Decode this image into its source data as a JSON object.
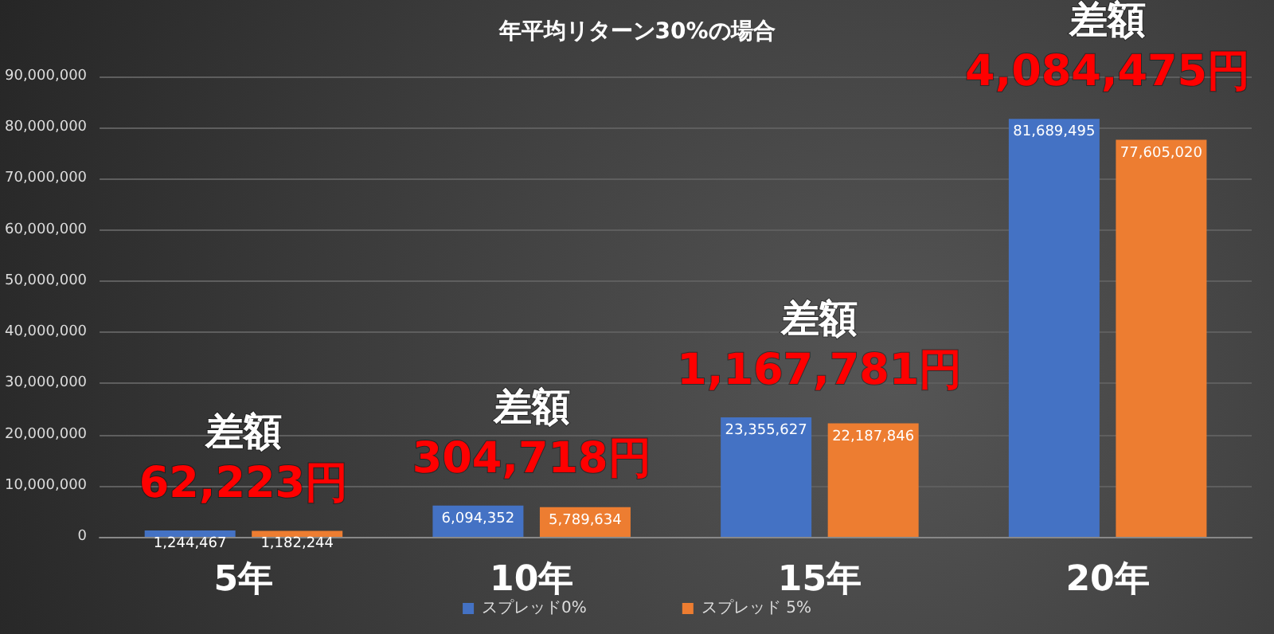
{
  "chart_data": {
    "type": "bar",
    "title": "年平均リターン30%の場合",
    "categories": [
      "5年",
      "10年",
      "15年",
      "20年"
    ],
    "series": [
      {
        "name": "スプレッド0%",
        "color": "#4472c4",
        "values": [
          1244467,
          6094352,
          23355627,
          81689495
        ],
        "value_labels": [
          "1,244,467",
          "6,094,352",
          "23,355,627",
          "81,689,495"
        ]
      },
      {
        "name": "スプレッド 5%",
        "color": "#ed7d31",
        "values": [
          1182244,
          5789634,
          22187846,
          77605020
        ],
        "value_labels": [
          "1,182,244",
          "5,789,634",
          "22,187,846",
          "77,605,020"
        ]
      }
    ],
    "ylim": [
      0,
      90000000
    ],
    "yticks": [
      {
        "value": 0,
        "label": "0"
      },
      {
        "value": 10000000,
        "label": "10,000,000"
      },
      {
        "value": 20000000,
        "label": "20,000,000"
      },
      {
        "value": 30000000,
        "label": "30,000,000"
      },
      {
        "value": 40000000,
        "label": "40,000,000"
      },
      {
        "value": 50000000,
        "label": "50,000,000"
      },
      {
        "value": 60000000,
        "label": "60,000,000"
      },
      {
        "value": 70000000,
        "label": "70,000,000"
      },
      {
        "value": 80000000,
        "label": "80,000,000"
      },
      {
        "value": 90000000,
        "label": "90,000,000"
      }
    ],
    "grid": "y",
    "legend": "bottom",
    "annotations": [
      "差額",
      "62,223円",
      "差額",
      "304,718円",
      "差額",
      "1,167,781円",
      "差額",
      "4,084,475円"
    ]
  }
}
